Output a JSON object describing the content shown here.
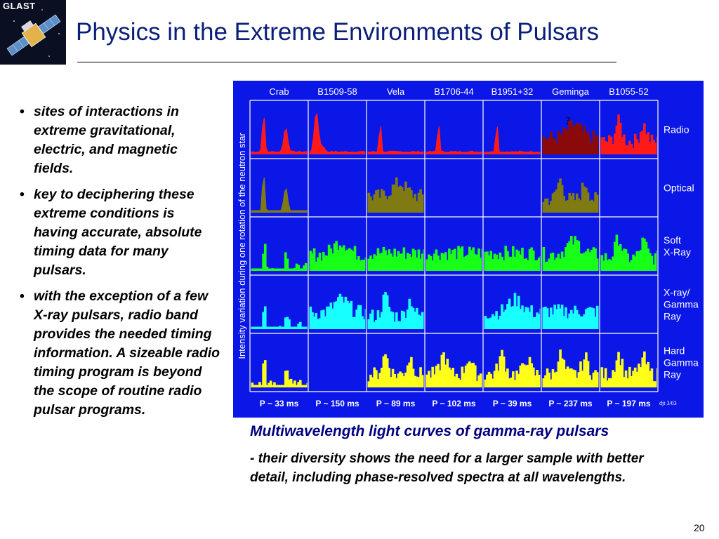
{
  "logo": {
    "text": "GLAST"
  },
  "title": "Physics in the Extreme Environments of Pulsars",
  "bullets": [
    "sites of interactions in extreme gravitational, electric, and magnetic fields.",
    "key to deciphering these extreme conditions is having accurate, absolute timing data for many pulsars.",
    "with the exception of a few X-ray pulsars, radio band provides the needed timing information. A sizeable radio timing program is beyond the scope of routine radio pulsar programs."
  ],
  "bullet_glyph": "•",
  "figure": {
    "y_axis_label": "Intensity variation during one rotation of the neutron star",
    "pulsars": [
      "Crab",
      "B1509-58",
      "Vela",
      "B1706-44",
      "B1951+32",
      "Geminga",
      "B1055-52"
    ],
    "periods": [
      "P ~ 33 ms",
      "P ~ 150 ms",
      "P ~ 89 ms",
      "P ~ 102 ms",
      "P ~ 39 ms",
      "P ~ 237 ms",
      "P ~ 197 ms"
    ],
    "bands": [
      {
        "label_lines": [
          "Radio"
        ],
        "color": "#ff1a1a"
      },
      {
        "label_lines": [
          "Optical"
        ],
        "color": "#7f7a12"
      },
      {
        "label_lines": [
          "Soft",
          "X-Ray"
        ],
        "color": "#18ff18"
      },
      {
        "label_lines": [
          "X-ray/",
          "Gamma",
          "Ray"
        ],
        "color": "#18ffff"
      },
      {
        "label_lines": [
          "Hard",
          "Gamma",
          "Ray"
        ],
        "color": "#ffff18"
      }
    ],
    "geminga_radio_mark": "?",
    "credit": "djt 3/03",
    "colors": {
      "background": "#0b17e6",
      "grid": "#ffffff",
      "text": "#ffffff",
      "geminga_radio": "#8a0a0a"
    }
  },
  "caption": {
    "title": "Multiwavelength light curves of gamma-ray pulsars",
    "body": "- their diversity shows the need for a larger sample with better detail, including phase-resolved spectra at all wavelengths."
  },
  "page_number": "20"
}
